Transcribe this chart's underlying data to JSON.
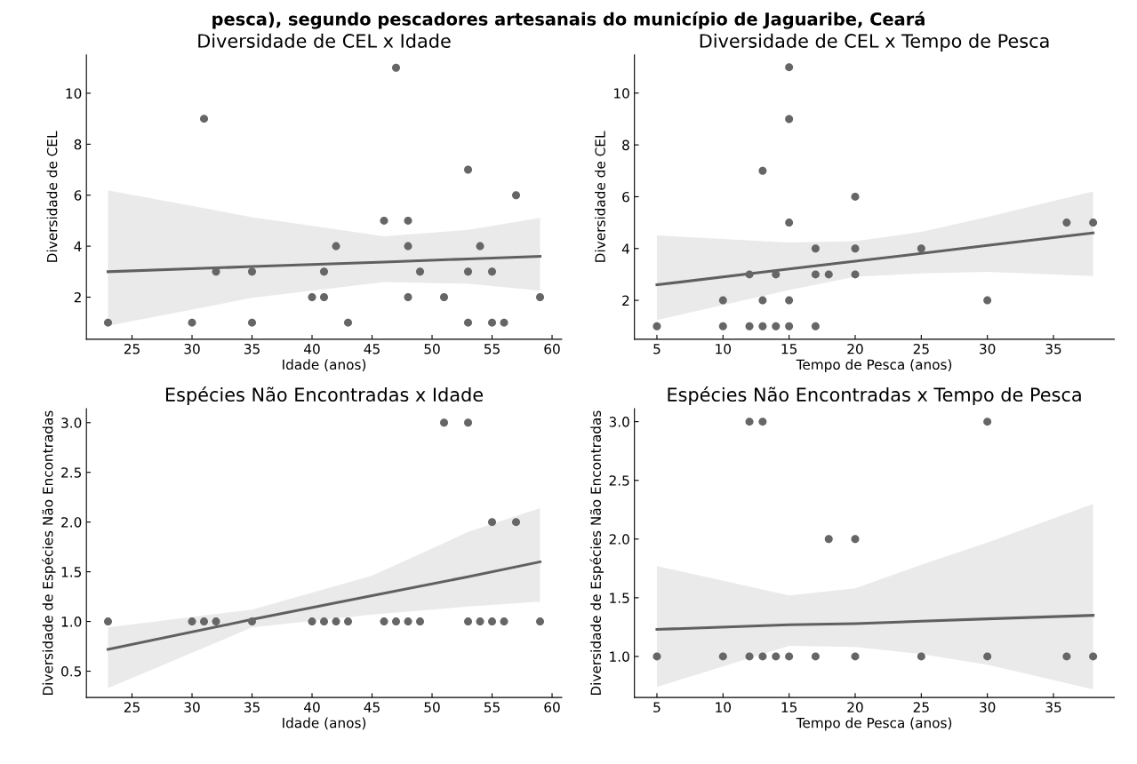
{
  "chart_data": [
    {
      "type": "scatter",
      "title": "Diversidade de CEL x Idade",
      "xlabel": "Idade (anos)",
      "ylabel": "Diversidade de CEL",
      "annotations": [
        "pesca), segundo pescadores artesanais do município de Jaguaribe, Ceará"
      ],
      "xlim": [
        21.2,
        60.8
      ],
      "ylim": [
        0.35,
        11.5
      ],
      "xticks": [
        25,
        30,
        35,
        40,
        45,
        50,
        55,
        60
      ],
      "yticks": [
        2,
        4,
        6,
        8,
        10
      ],
      "grid": false,
      "series": [
        {
          "marker": "circle",
          "color": "#666666",
          "x": [
            23,
            30,
            31,
            32,
            35,
            35,
            40,
            41,
            41,
            42,
            43,
            46,
            47,
            48,
            48,
            48,
            49,
            51,
            53,
            53,
            53,
            54,
            55,
            55,
            56,
            57,
            59
          ],
          "values": [
            1,
            1,
            9,
            3,
            3,
            1,
            2,
            2,
            3,
            4,
            1,
            5,
            11,
            5,
            4,
            2,
            3,
            2,
            7,
            3,
            1,
            4,
            3,
            1,
            1,
            6,
            2
          ]
        },
        {
          "type": "line",
          "color": "#606060",
          "x": [
            23,
            35,
            46,
            53,
            59
          ],
          "values": [
            3.0,
            3.2,
            3.38,
            3.5,
            3.6
          ],
          "lower": [
            0.88,
            1.97,
            2.59,
            2.53,
            2.25
          ],
          "upper": [
            6.19,
            5.14,
            4.39,
            4.64,
            5.11
          ]
        }
      ]
    },
    {
      "type": "scatter",
      "title": "Diversidade de CEL x Tempo de Pesca",
      "xlabel": "Tempo de Pesca (anos)",
      "ylabel": "Diversidade de CEL",
      "xlim": [
        3.3,
        39.6
      ],
      "ylim": [
        0.5,
        11.47
      ],
      "xticks": [
        5,
        10,
        15,
        20,
        25,
        30,
        35
      ],
      "yticks": [
        2,
        4,
        6,
        8,
        10
      ],
      "grid": false,
      "series": [
        {
          "marker": "circle",
          "color": "#666666",
          "x": [
            5,
            10,
            10,
            12,
            12,
            13,
            13,
            13,
            14,
            14,
            15,
            15,
            15,
            15,
            15,
            17,
            17,
            17,
            18,
            20,
            20,
            20,
            25,
            30,
            36,
            38
          ],
          "values": [
            1,
            2,
            1,
            3,
            1,
            7,
            2,
            1,
            3,
            1,
            11,
            9,
            5,
            2,
            1,
            4,
            3,
            1,
            3,
            6,
            4,
            3,
            4,
            2,
            5,
            5
          ]
        },
        {
          "type": "line",
          "color": "#606060",
          "x": [
            5,
            15,
            20,
            25,
            30,
            38
          ],
          "values": [
            2.6,
            3.21,
            3.51,
            3.81,
            4.12,
            4.6
          ],
          "lower": [
            1.24,
            2.4,
            2.91,
            3.04,
            3.1,
            2.94
          ],
          "upper": [
            4.51,
            4.23,
            4.28,
            4.64,
            5.22,
            6.2
          ]
        }
      ]
    },
    {
      "type": "scatter",
      "title": "Espécies Não Encontradas x Idade",
      "xlabel": "Idade (anos)",
      "ylabel": "Diversidade de Espécies Não Encontradas",
      "xlim": [
        21.2,
        60.8
      ],
      "ylim": [
        0.235,
        3.14
      ],
      "xticks": [
        25,
        30,
        35,
        40,
        45,
        50,
        55,
        60
      ],
      "yticks": [
        {
          "value": 0.5,
          "label": "0.5"
        },
        {
          "value": 1,
          "label": "1.0"
        },
        {
          "value": 1.5,
          "label": "1.5"
        },
        {
          "value": 2,
          "label": "2.0"
        },
        {
          "value": 2.5,
          "label": "2.5"
        },
        {
          "value": 3,
          "label": "3.0"
        }
      ],
      "grid": false,
      "series": [
        {
          "marker": "circle",
          "color": "#666666",
          "x": [
            23,
            30,
            31,
            32,
            35,
            40,
            41,
            42,
            43,
            46,
            47,
            48,
            49,
            51,
            53,
            53,
            54,
            55,
            55,
            56,
            57,
            59
          ],
          "values": [
            1,
            1,
            1,
            1,
            1,
            1,
            1,
            1,
            1,
            1,
            1,
            1,
            1,
            3,
            3,
            1,
            1,
            2,
            1,
            1,
            2,
            1
          ]
        },
        {
          "type": "line",
          "color": "#606060",
          "x": [
            23,
            35,
            45,
            53,
            59
          ],
          "values": [
            0.72,
            1.02,
            1.26,
            1.45,
            1.6
          ],
          "lower": [
            0.33,
            0.94,
            1.07,
            1.15,
            1.2
          ],
          "upper": [
            0.94,
            1.12,
            1.46,
            1.9,
            2.14
          ]
        }
      ]
    },
    {
      "type": "scatter",
      "title": "Espécies Não Encontradas x Tempo de Pesca",
      "xlabel": "Tempo de Pesca (anos)",
      "ylabel": "Diversidade de Espécies Não Encontradas",
      "xlim": [
        3.3,
        39.6
      ],
      "ylim": [
        0.65,
        3.11
      ],
      "xticks": [
        5,
        10,
        15,
        20,
        25,
        30,
        35
      ],
      "yticks": [
        {
          "value": 1,
          "label": "1.0"
        },
        {
          "value": 1.5,
          "label": "1.5"
        },
        {
          "value": 2,
          "label": "2.0"
        },
        {
          "value": 2.5,
          "label": "2.5"
        },
        {
          "value": 3,
          "label": "3.0"
        }
      ],
      "grid": false,
      "series": [
        {
          "marker": "circle",
          "color": "#666666",
          "x": [
            5,
            10,
            12,
            12,
            13,
            13,
            14,
            15,
            17,
            18,
            20,
            20,
            25,
            30,
            30,
            36,
            38
          ],
          "values": [
            1,
            1,
            3,
            1,
            3,
            1,
            1,
            1,
            1,
            2,
            2,
            1,
            1,
            3,
            1,
            1,
            1
          ]
        },
        {
          "type": "line",
          "color": "#606060",
          "x": [
            5,
            15,
            20,
            25,
            30,
            38
          ],
          "values": [
            1.23,
            1.27,
            1.28,
            1.3,
            1.32,
            1.35
          ],
          "lower": [
            0.74,
            1.09,
            1.08,
            1.02,
            0.93,
            0.72
          ],
          "upper": [
            1.77,
            1.52,
            1.58,
            1.78,
            1.97,
            2.3
          ]
        }
      ]
    }
  ]
}
